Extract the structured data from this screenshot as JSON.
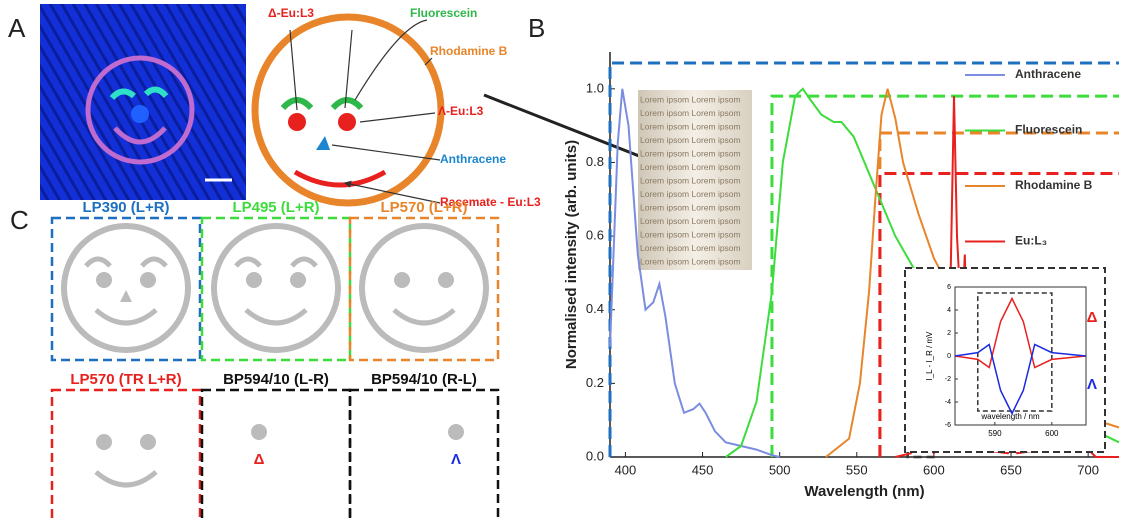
{
  "panel_labels": {
    "a": "A",
    "b": "B",
    "c": "C"
  },
  "diagram": {
    "labels": [
      {
        "text": "Δ-Eu:L3",
        "color": "#e8201e"
      },
      {
        "text": "Fluorescein",
        "color": "#2fb84a"
      },
      {
        "text": "Rhodamine B",
        "color": "#e8852a"
      },
      {
        "text": "Λ-Eu:L3",
        "color": "#e8201e"
      },
      {
        "text": "Anthracene",
        "color": "#1c86d0"
      },
      {
        "text": "Racemate - Eu:L3",
        "color": "#e8201e"
      }
    ]
  },
  "panel_c": {
    "boxes": [
      {
        "title": "LP390 (L+R)",
        "color": "#1f6fc0"
      },
      {
        "title": "LP495 (L+R)",
        "color": "#3ddc3d"
      },
      {
        "title": "LP570 (L+R)",
        "color": "#e8852a"
      },
      {
        "title": "LP570 (TR L+R)",
        "color": "#e8201e"
      },
      {
        "title": "BP594/10 (L-R)",
        "color": "#111111"
      },
      {
        "title": "BP594/10 (R-L)",
        "color": "#111111"
      }
    ],
    "symbols": [
      "Δ",
      "Λ"
    ]
  },
  "photo_text": "Lorem ipsom Lorem ipsom",
  "chart_data": {
    "type": "line",
    "xlabel": "Wavelength (nm)",
    "ylabel": "Normalised intensity (arb. units)",
    "xlim": [
      390,
      720
    ],
    "ylim": [
      0,
      1.1
    ],
    "xticks": [
      400,
      450,
      500,
      550,
      600,
      650,
      700
    ],
    "yticks": [
      {
        "value": 0,
        "label": "0.0"
      },
      0.2,
      0.4,
      0.6,
      0.8,
      {
        "value": 1,
        "label": "1.0"
      }
    ],
    "series": [
      {
        "name": "Anthracene",
        "color": "#7b8de0",
        "x": [
          390,
          395,
          398,
          402,
          408,
          413,
          418,
          422,
          426,
          432,
          438,
          444,
          448,
          452,
          458,
          465,
          475,
          485,
          495,
          500
        ],
        "values": [
          0.3,
          0.85,
          1.0,
          0.9,
          0.55,
          0.4,
          0.42,
          0.47,
          0.38,
          0.2,
          0.12,
          0.13,
          0.145,
          0.12,
          0.07,
          0.04,
          0.03,
          0.02,
          0.005,
          0
        ]
      },
      {
        "name": "Fluorescein",
        "color": "#3ddc3d",
        "x": [
          465,
          475,
          485,
          495,
          502,
          510,
          515,
          520,
          527,
          535,
          540,
          548,
          555,
          565,
          575,
          590,
          610,
          630,
          650,
          670,
          690,
          720
        ],
        "values": [
          0,
          0.03,
          0.15,
          0.45,
          0.8,
          0.98,
          1.0,
          0.97,
          0.93,
          0.91,
          0.91,
          0.87,
          0.8,
          0.7,
          0.6,
          0.49,
          0.37,
          0.27,
          0.2,
          0.14,
          0.1,
          0.04
        ]
      },
      {
        "name": "Rhodamine B",
        "color": "#e8852a",
        "x": [
          530,
          545,
          552,
          558,
          562,
          566,
          570,
          575,
          580,
          590,
          600,
          615,
          630,
          650,
          670,
          690,
          720
        ],
        "values": [
          0,
          0.05,
          0.2,
          0.45,
          0.7,
          0.93,
          1.0,
          0.92,
          0.8,
          0.66,
          0.54,
          0.42,
          0.33,
          0.24,
          0.17,
          0.12,
          0.08
        ]
      },
      {
        "name": "Eu:L₃",
        "color": "#e8201e",
        "x": [
          575,
          585,
          590,
          592,
          595,
          600,
          607,
          610,
          613,
          615,
          618,
          620,
          622,
          625,
          630,
          648,
          651,
          654,
          685,
          688,
          691,
          697,
          700,
          705,
          720
        ],
        "values": [
          0,
          0.01,
          0.1,
          0.13,
          0.08,
          0.01,
          0.05,
          0.3,
          0.98,
          0.6,
          0.35,
          0.55,
          0.25,
          0.07,
          0.02,
          0.01,
          0.05,
          0.01,
          0.03,
          0.15,
          0.03,
          0.07,
          0.02,
          0,
          0
        ]
      }
    ],
    "filters": [
      {
        "color": "#1f6fc0",
        "x": 390,
        "top": 1.07
      },
      {
        "color": "#3ddc3d",
        "x": 495,
        "top": 0.98
      },
      {
        "color": "#e8852a",
        "x": 565,
        "top": 0.88
      },
      {
        "color": "#e8201e",
        "x": 565,
        "top": 0.77
      }
    ],
    "window": {
      "x": [
        583,
        601
      ],
      "top": 0.24
    },
    "inset": {
      "xlabel": "wavelength / nm",
      "ylabel": "I_L - I_R / mV",
      "xlim": [
        583,
        606
      ],
      "ylim": [
        -6,
        6
      ],
      "xticks": [
        590,
        600
      ],
      "yticks": [
        6,
        4,
        2,
        0,
        -2,
        -4,
        -6
      ],
      "series": [
        {
          "color": "#e8201e",
          "x": [
            583,
            587,
            589,
            591,
            593,
            595,
            597,
            600,
            606
          ],
          "values": [
            0,
            -0.3,
            -1,
            3,
            5,
            3,
            -1,
            -0.3,
            0
          ]
        },
        {
          "color": "#1a2be0",
          "x": [
            583,
            587,
            589,
            591,
            593,
            595,
            597,
            600,
            606
          ],
          "values": [
            0,
            0.3,
            1,
            -3,
            -5,
            -3,
            1,
            0.3,
            0
          ]
        }
      ]
    }
  }
}
